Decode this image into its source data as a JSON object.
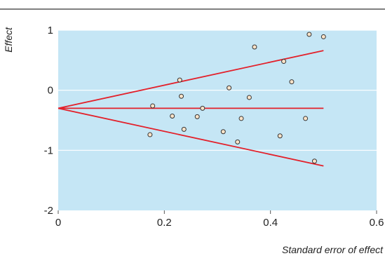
{
  "chart_data": {
    "type": "scatter",
    "title": "",
    "xlabel": "Standard error of effect",
    "ylabel": "Effect",
    "xlim": [
      0,
      0.6
    ],
    "ylim": [
      -2,
      1
    ],
    "xticks": [
      0,
      0.2,
      0.4,
      0.6
    ],
    "xtick_labels": [
      "0",
      "0.2",
      "0.4",
      "0.6"
    ],
    "yticks": [
      1,
      0,
      -1,
      -2
    ],
    "ytick_labels": [
      "1",
      "0",
      "-1",
      "-2"
    ],
    "grid": "horizontal",
    "legend": "none",
    "colors": {
      "plot_background": "#c5e6f5",
      "gridline": "#ffffff",
      "line": "#e3202a",
      "point_fill": "#fce3c8",
      "point_stroke": "#333333",
      "top_rule": "#333333"
    },
    "points": [
      {
        "x": 0.173,
        "y": -0.74
      },
      {
        "x": 0.178,
        "y": -0.26
      },
      {
        "x": 0.215,
        "y": -0.43
      },
      {
        "x": 0.229,
        "y": 0.17
      },
      {
        "x": 0.232,
        "y": -0.1
      },
      {
        "x": 0.237,
        "y": -0.65
      },
      {
        "x": 0.262,
        "y": -0.44
      },
      {
        "x": 0.272,
        "y": -0.3
      },
      {
        "x": 0.311,
        "y": -0.69
      },
      {
        "x": 0.322,
        "y": 0.04
      },
      {
        "x": 0.338,
        "y": -0.86
      },
      {
        "x": 0.345,
        "y": -0.47
      },
      {
        "x": 0.36,
        "y": -0.12
      },
      {
        "x": 0.37,
        "y": 0.72
      },
      {
        "x": 0.418,
        "y": -0.76
      },
      {
        "x": 0.425,
        "y": 0.48
      },
      {
        "x": 0.44,
        "y": 0.14
      },
      {
        "x": 0.466,
        "y": -0.47
      },
      {
        "x": 0.473,
        "y": 0.93
      },
      {
        "x": 0.483,
        "y": -1.18
      },
      {
        "x": 0.5,
        "y": 0.89
      }
    ],
    "lines": [
      {
        "role": "center",
        "x": [
          0,
          0.5
        ],
        "y": [
          -0.3,
          -0.3
        ]
      },
      {
        "role": "upper",
        "x": [
          0,
          0.5
        ],
        "y": [
          -0.3,
          0.66
        ]
      },
      {
        "role": "lower",
        "x": [
          0,
          0.5
        ],
        "y": [
          -0.3,
          -1.26
        ]
      }
    ]
  }
}
